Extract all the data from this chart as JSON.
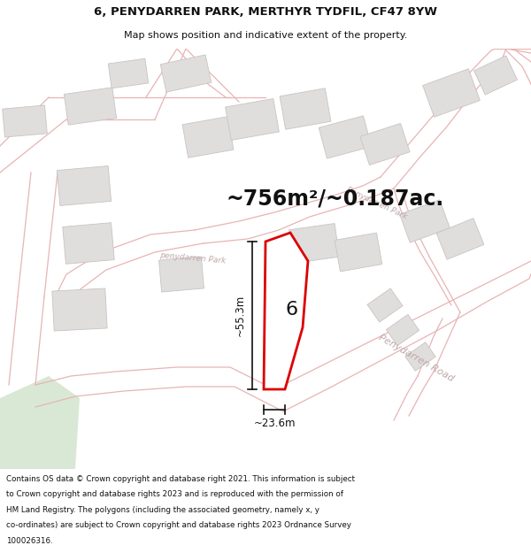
{
  "title_line1": "6, PENYDARREN PARK, MERTHYR TYDFIL, CF47 8YW",
  "title_line2": "Map shows position and indicative extent of the property.",
  "area_text": "~756m²/~0.187ac.",
  "label_number": "6",
  "dim_height": "~55.3m",
  "dim_width": "~23.6m",
  "footer_lines": [
    "Contains OS data © Crown copyright and database right 2021. This information is subject",
    "to Crown copyright and database rights 2023 and is reproduced with the permission of",
    "HM Land Registry. The polygons (including the associated geometry, namely x, y",
    "co-ordinates) are subject to Crown copyright and database rights 2023 Ordnance Survey",
    "100026316."
  ],
  "map_bg": "#f9f7f5",
  "road_line_color": "#e8b4b4",
  "building_face": "#e0dedd",
  "building_edge": "#c8c4c2",
  "plot_edge": "#dd0000",
  "plot_fill": "#ffffff",
  "green_fill": "#d8e8d4",
  "street_label_color": "#c0a8a8",
  "dim_color": "#111111",
  "title_color": "#111111",
  "footer_color": "#111111",
  "title_fontsize": 9.5,
  "subtitle_fontsize": 8,
  "area_fontsize": 17,
  "label_fontsize": 16,
  "dim_fontsize": 8.5,
  "street_fontsize": 7.5,
  "footer_fontsize": 6.3
}
